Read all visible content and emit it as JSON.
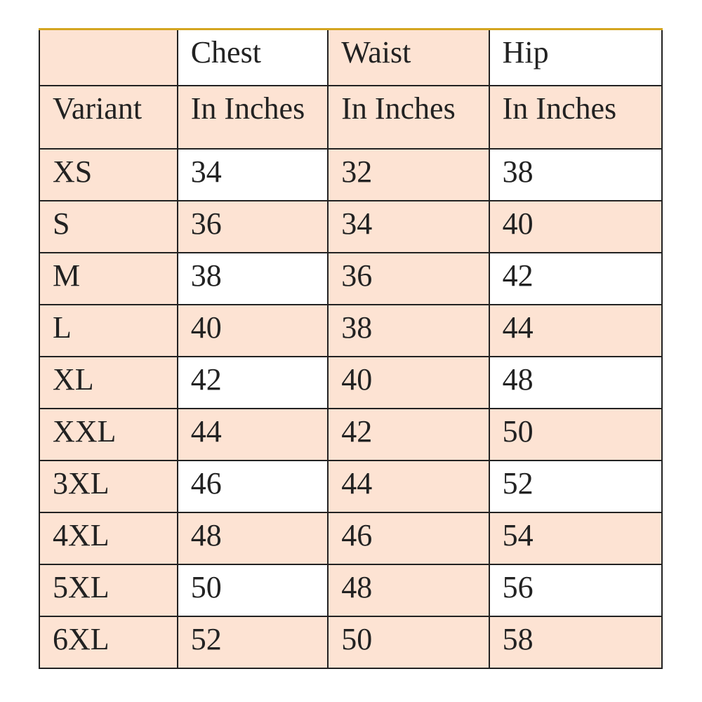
{
  "colors": {
    "peach": "#fde3d3",
    "white": "#ffffff",
    "top_border": "#d4a520",
    "grid": "#222222"
  },
  "header": {
    "row1": [
      "",
      "Chest",
      "Waist",
      "Hip"
    ],
    "row2": [
      "Variant",
      "In Inches",
      "In Inches",
      "In Inches"
    ]
  },
  "rows": [
    {
      "variant": "XS",
      "chest": "34",
      "waist": "32",
      "hip": "38"
    },
    {
      "variant": "S",
      "chest": "36",
      "waist": "34",
      "hip": "40"
    },
    {
      "variant": "M",
      "chest": "38",
      "waist": "36",
      "hip": "42"
    },
    {
      "variant": "L",
      "chest": "40",
      "waist": "38",
      "hip": "44"
    },
    {
      "variant": "XL",
      "chest": "42",
      "waist": "40",
      "hip": "48"
    },
    {
      "variant": "XXL",
      "chest": "44",
      "waist": "42",
      "hip": "50"
    },
    {
      "variant": "3XL",
      "chest": "46",
      "waist": "44",
      "hip": "52"
    },
    {
      "variant": "4XL",
      "chest": "48",
      "waist": "46",
      "hip": "54"
    },
    {
      "variant": "5XL",
      "chest": "50",
      "waist": "48",
      "hip": "56"
    },
    {
      "variant": "6XL",
      "chest": "52",
      "waist": "50",
      "hip": "58"
    }
  ]
}
